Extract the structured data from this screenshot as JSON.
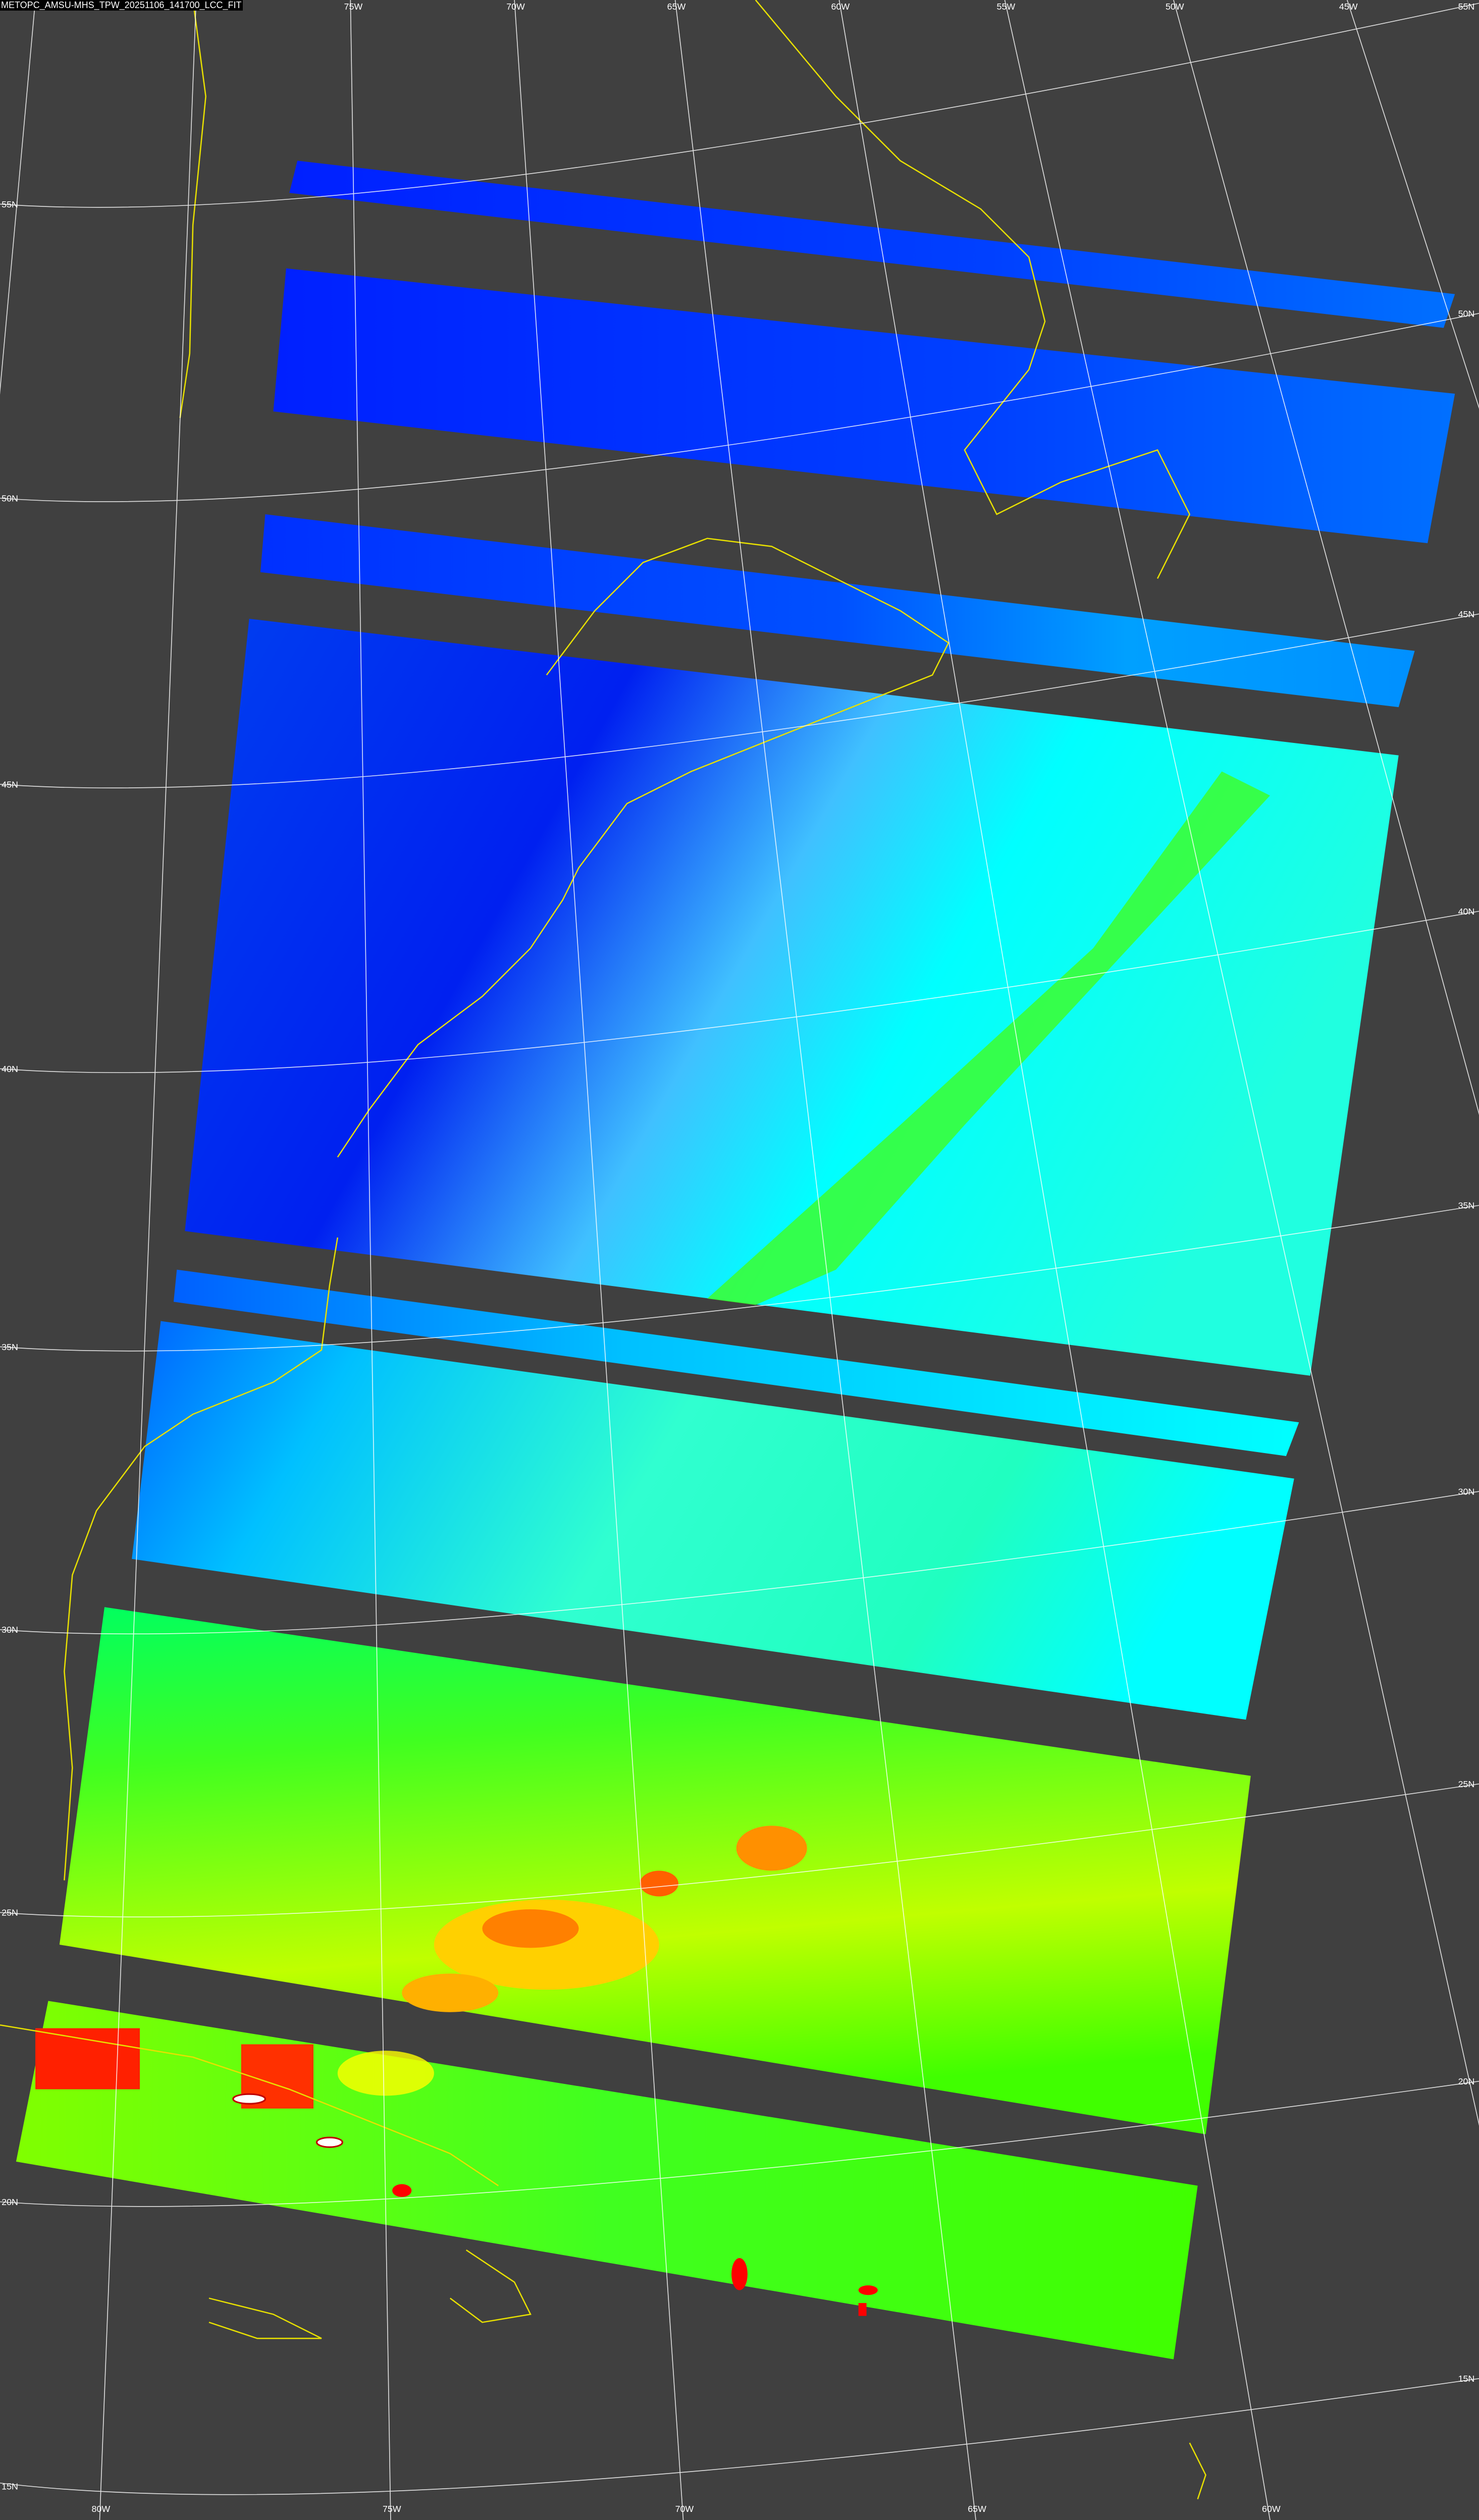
{
  "title": "METOPC_AMSU-MHS_TPW_20251106_141700_LCC_FIT",
  "colors": {
    "background": "#404040",
    "grid": "#ffffff",
    "coastline": "#e8e000",
    "low_tpw": "#0020ff",
    "mid_low_tpw": "#0080ff",
    "mid_tpw": "#00ffff",
    "high_tpw": "#40ff00",
    "higher_tpw": "#ffff00",
    "highest_tpw": "#ff0000"
  },
  "grid_labels": {
    "top_longitudes": [
      "75W",
      "70W",
      "65W",
      "60W",
      "55W",
      "50W",
      "45W"
    ],
    "bottom_longitudes": [
      "80W",
      "75W",
      "70W",
      "65W",
      "60W"
    ],
    "left_latitudes": [
      "55N",
      "50N",
      "45N",
      "40N",
      "35N",
      "30N",
      "25N",
      "20N",
      "15N"
    ],
    "right_latitudes": [
      "55N",
      "50N",
      "45N",
      "40N",
      "35N",
      "30N",
      "25N",
      "20N",
      "15N"
    ]
  }
}
